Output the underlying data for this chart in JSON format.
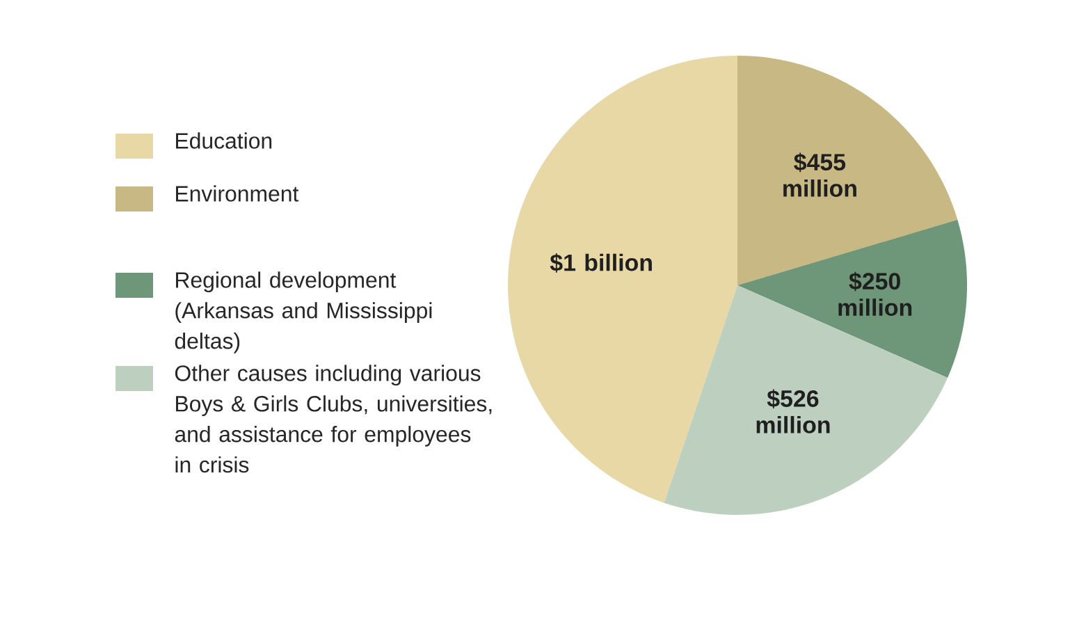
{
  "chart_data": {
    "type": "pie",
    "categories": [
      "Education",
      "Environment",
      "Regional development (Arkansas and Mississippi deltas)",
      "Other causes including various Boys & Girls Clubs, universities, and assistance for employees in crisis"
    ],
    "values": [
      1000000000,
      455000000,
      250000000,
      526000000
    ],
    "value_labels": [
      "$1 billion",
      "$455 million",
      "$250 million",
      "$526 million"
    ],
    "colors": [
      "#e8d8a6",
      "#c8b883",
      "#6e9679",
      "#bdd0c0"
    ],
    "legend": "left"
  }
}
